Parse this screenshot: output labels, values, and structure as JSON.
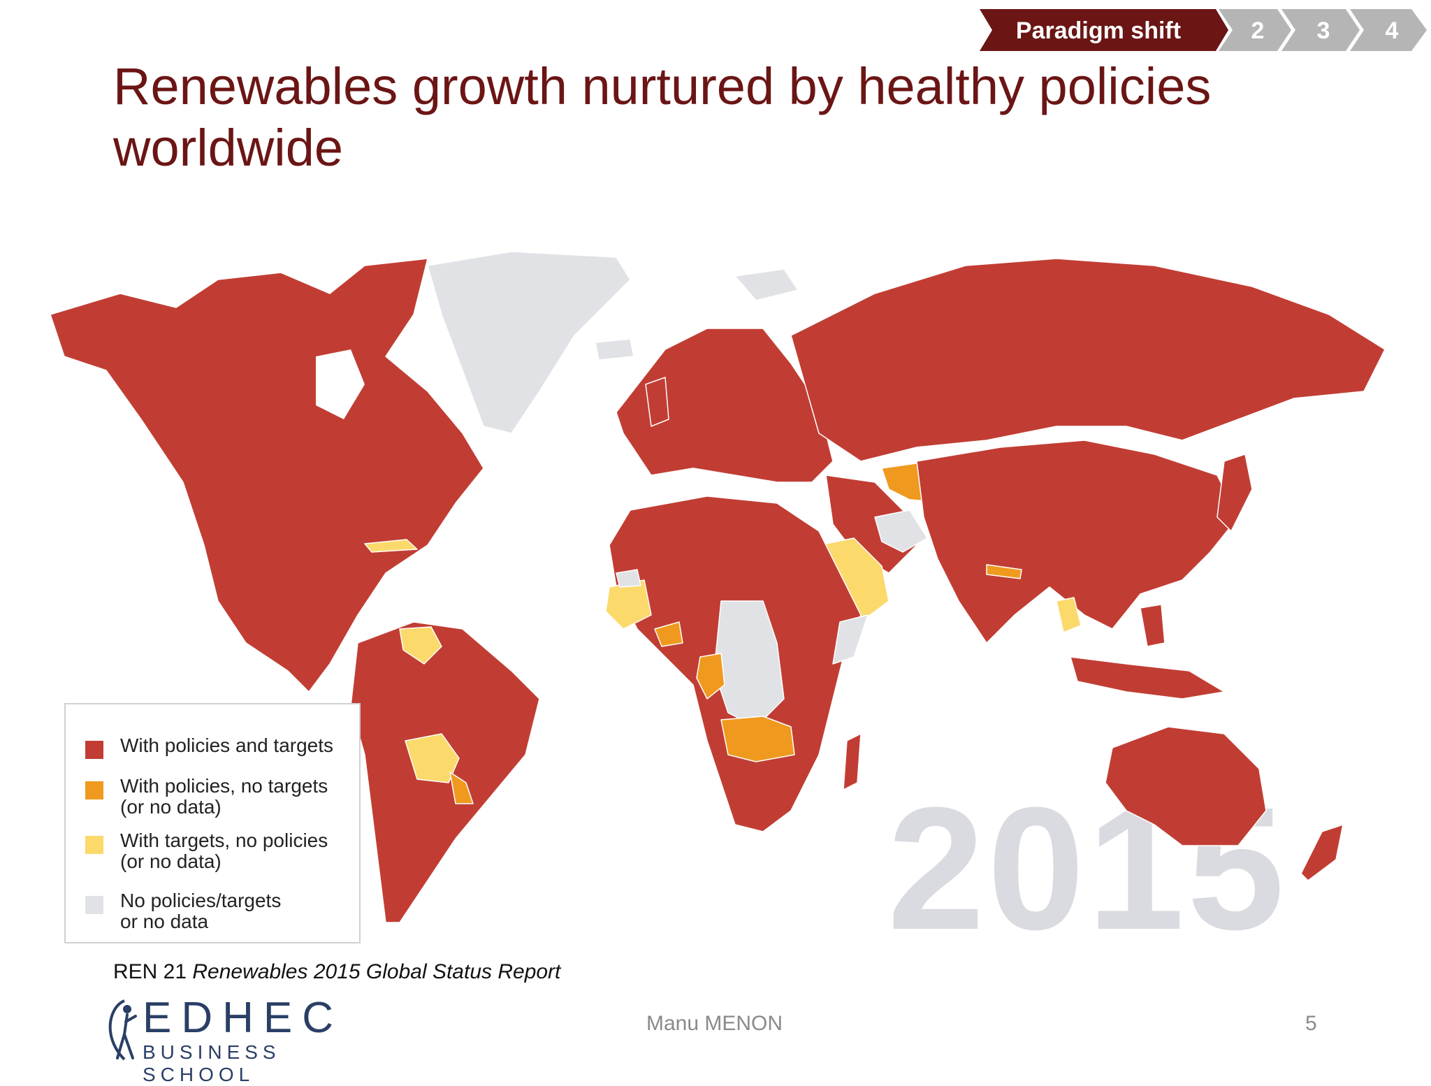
{
  "colors": {
    "policies_and_targets": "#c13d33",
    "policies_no_targets": "#ef9a1e",
    "targets_no_policies": "#fbd96b",
    "no_data": "#e1e2e6",
    "title": "#6b1515",
    "nav_active": "#6b1515",
    "nav_inactive": "#b5b5b5"
  },
  "nav": {
    "steps": [
      {
        "label": "Paradigm shift",
        "active": true
      },
      {
        "label": "2",
        "active": false
      },
      {
        "label": "3",
        "active": false
      },
      {
        "label": "4",
        "active": false
      }
    ]
  },
  "slide": {
    "title_line1": "Renewables growth nurtured by healthy policies",
    "title_line2": "worldwide"
  },
  "map": {
    "year": "2015",
    "legend": [
      {
        "line1": "With policies and targets",
        "line2": "",
        "color_key": "policies_and_targets"
      },
      {
        "line1": "With policies, no targets",
        "line2": "(or no data)",
        "color_key": "policies_no_targets"
      },
      {
        "line1": "With targets, no policies",
        "line2": "(or no data)",
        "color_key": "targets_no_policies"
      },
      {
        "line1": "No policies/targets",
        "line2": "or no data",
        "color_key": "no_data"
      }
    ]
  },
  "footer": {
    "source_prefix": "REN 21 ",
    "source_title": "Renewables 2015 Global Status Report",
    "logo_main": "EDHEC",
    "logo_sub": "BUSINESS SCHOOL",
    "author": "Manu MENON",
    "page_number": "5"
  }
}
